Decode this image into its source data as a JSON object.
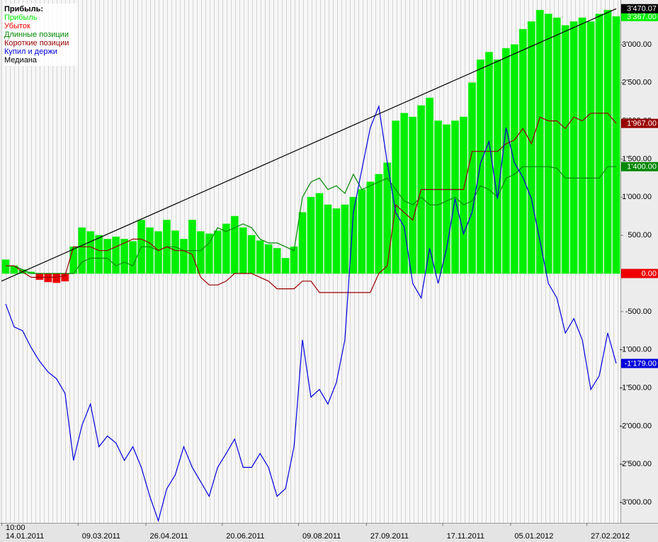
{
  "chart_data": {
    "type": "bar",
    "legend_title": "Прибыль:",
    "legend": "top-left",
    "x_time_label": "10:00",
    "categories": [
      "14.01.2011",
      null,
      null,
      null,
      null,
      null,
      null,
      null,
      null,
      "09.03.2011",
      null,
      null,
      null,
      null,
      null,
      null,
      null,
      "26.04.2011",
      null,
      null,
      null,
      null,
      null,
      null,
      null,
      null,
      "20.06.2011",
      null,
      null,
      null,
      null,
      null,
      null,
      null,
      null,
      "09.08.2011",
      null,
      null,
      null,
      null,
      null,
      null,
      null,
      "27.09.2011",
      null,
      null,
      null,
      null,
      null,
      null,
      null,
      null,
      "17.11.2011",
      null,
      null,
      null,
      null,
      null,
      null,
      null,
      "05.01.2012",
      null,
      null,
      null,
      null,
      null,
      null,
      null,
      null,
      "27.02.2012",
      null,
      null,
      null
    ],
    "ylim": [
      -3268,
      3584
    ],
    "yticks": [
      {
        "value": -3000,
        "label": "-3'000.00"
      },
      {
        "value": -2500,
        "label": "-2'500.00"
      },
      {
        "value": -2000,
        "label": "-2'000.00"
      },
      {
        "value": -1500,
        "label": "-1'500.00"
      },
      {
        "value": -1000,
        "label": "-1'000.00"
      },
      {
        "value": -500,
        "label": "-500.00"
      },
      {
        "value": 500,
        "label": "500.00"
      },
      {
        "value": 1000,
        "label": "1'000.00"
      },
      {
        "value": 1500,
        "label": "1'500.00"
      },
      {
        "value": 2000,
        "label": "2'000.00"
      },
      {
        "value": 2500,
        "label": "2'500.00"
      },
      {
        "value": 3000,
        "label": "3'000.00"
      }
    ],
    "series": [
      {
        "name": "Прибыль",
        "type": "bar",
        "color": "#00ee00",
        "end_label": "3'367.00",
        "values": [
          180,
          100,
          50,
          20,
          0,
          0,
          0,
          0,
          350,
          600,
          550,
          500,
          450,
          480,
          450,
          420,
          700,
          600,
          550,
          700,
          560,
          450,
          700,
          550,
          520,
          560,
          650,
          750,
          600,
          500,
          430,
          380,
          330,
          200,
          350,
          800,
          1000,
          1050,
          900,
          850,
          900,
          1000,
          1100,
          1200,
          1300,
          1450,
          2000,
          2100,
          2050,
          2200,
          2300,
          2000,
          1950,
          2000,
          2050,
          2500,
          2800,
          2900,
          2800,
          2950,
          3000,
          3200,
          3300,
          3450,
          3400,
          3350,
          3250,
          3300,
          3350,
          3300,
          3400,
          3450,
          3367
        ]
      },
      {
        "name": "Убыток",
        "type": "bar",
        "color": "#ee0000",
        "end_label": "0.00",
        "values": [
          0,
          0,
          0,
          0,
          -80,
          -110,
          -120,
          -100,
          0,
          0,
          0,
          0,
          0,
          0,
          0,
          0,
          0,
          0,
          0,
          0,
          0,
          0,
          0,
          0,
          0,
          0,
          0,
          0,
          0,
          0,
          0,
          0,
          0,
          0,
          0,
          0,
          0,
          0,
          0,
          0,
          0,
          0,
          0,
          0,
          0,
          0,
          0,
          0,
          0,
          0,
          0,
          0,
          0,
          0,
          0,
          0,
          0,
          0,
          0,
          0,
          0,
          0,
          0,
          0,
          0,
          0,
          0,
          0,
          0,
          0,
          0,
          0,
          0
        ]
      },
      {
        "name": "Длинные позиции",
        "type": "line",
        "color": "#008800",
        "end_label": "1'400.00",
        "values": [
          100,
          100,
          50,
          0,
          0,
          0,
          0,
          0,
          0,
          150,
          200,
          200,
          200,
          100,
          150,
          100,
          350,
          350,
          300,
          350,
          350,
          300,
          300,
          300,
          400,
          600,
          550,
          600,
          650,
          600,
          450,
          400,
          400,
          350,
          300,
          1000,
          1200,
          1250,
          1100,
          1150,
          1050,
          1300,
          1100,
          1150,
          1200,
          1250,
          1100,
          950,
          900,
          1000,
          900,
          900,
          950,
          1000,
          900,
          950,
          1150,
          1100,
          1000,
          1250,
          1300,
          1400,
          1400,
          1400,
          1400,
          1380,
          1250,
          1250,
          1250,
          1250,
          1250,
          1400,
          1400
        ]
      },
      {
        "name": "Короткие позиции",
        "type": "line",
        "color": "#990000",
        "end_label": "1'967.00",
        "values": [
          100,
          100,
          20,
          -50,
          -50,
          -50,
          -50,
          -30,
          350,
          350,
          350,
          300,
          300,
          350,
          400,
          450,
          450,
          400,
          300,
          350,
          300,
          300,
          250,
          -50,
          -150,
          -150,
          -100,
          0,
          0,
          0,
          -50,
          -100,
          -200,
          -200,
          -200,
          -100,
          -100,
          -250,
          -250,
          -250,
          -250,
          -250,
          -250,
          -250,
          0,
          100,
          900,
          800,
          700,
          1100,
          1100,
          1100,
          1100,
          1100,
          1100,
          1600,
          1600,
          1600,
          1600,
          1700,
          1750,
          1900,
          1700,
          2050,
          2000,
          2000,
          1900,
          2050,
          2000,
          2100,
          2100,
          2100,
          1967
        ]
      },
      {
        "name": "Купил и держи",
        "type": "line",
        "color": "#0000dd",
        "end_label": "-1'179.00",
        "values": [
          -400,
          -700,
          -750,
          -970,
          -1150,
          -1290,
          -1380,
          -1570,
          -2450,
          -1990,
          -1710,
          -2270,
          -2130,
          -2220,
          -2450,
          -2270,
          -2540,
          -2920,
          -3240,
          -2820,
          -2640,
          -2270,
          -2540,
          -2730,
          -2920,
          -2540,
          -2360,
          -2170,
          -2540,
          -2540,
          -2360,
          -2540,
          -2920,
          -2820,
          -2270,
          -870,
          -1620,
          -1520,
          -1710,
          -1430,
          -870,
          800,
          1360,
          1910,
          2190,
          1450,
          800,
          610,
          -130,
          -320,
          330,
          -130,
          330,
          980,
          520,
          800,
          1450,
          1730,
          980,
          1910,
          1450,
          1260,
          980,
          430,
          -130,
          -320,
          -780,
          -590,
          -870,
          -1520,
          -1340,
          -780,
          -1179
        ]
      },
      {
        "name": "Медиана",
        "type": "trend",
        "color": "#000000",
        "end_label": "3'470.07",
        "start": -100,
        "end": 3470.07
      }
    ]
  }
}
